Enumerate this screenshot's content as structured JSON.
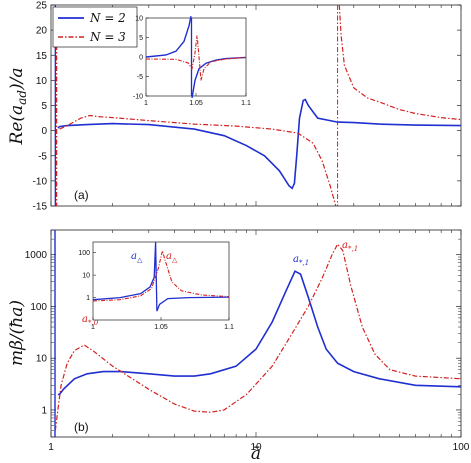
{
  "chart_data": [
    {
      "type": "line",
      "panel_label": "(a)",
      "ylabel": "Re(a_ad)/a",
      "xscale": "log",
      "xlim": [
        1,
        100
      ],
      "ylim": [
        -15,
        25
      ],
      "y_ticks": [
        -15,
        -10,
        -5,
        0,
        5,
        10,
        15,
        20,
        25
      ],
      "legend": {
        "placement": "top-left",
        "entries": [
          "N = 2",
          "N = 3"
        ]
      },
      "series": [
        {
          "name": "N = 2",
          "color": "#1f2fd0",
          "style": "solid",
          "points": [
            [
              1.08,
              0.5
            ],
            [
              1.1,
              0.8
            ],
            [
              1.2,
              1.0
            ],
            [
              1.5,
              1.2
            ],
            [
              2,
              1.4
            ],
            [
              3,
              1.2
            ],
            [
              5,
              0.3
            ],
            [
              7,
              -1.0
            ],
            [
              9,
              -3.0
            ],
            [
              11,
              -5.0
            ],
            [
              13,
              -8.0
            ],
            [
              14.5,
              -11.0
            ],
            [
              15,
              -11.5
            ],
            [
              15.4,
              -10.5
            ],
            [
              15.8,
              -5
            ],
            [
              16.3,
              2.5
            ],
            [
              17,
              6.0
            ],
            [
              17.4,
              6.2
            ],
            [
              18,
              5.0
            ],
            [
              20,
              2.5
            ],
            [
              25,
              1.7
            ],
            [
              30,
              1.6
            ],
            [
              40,
              1.3
            ],
            [
              60,
              1.1
            ],
            [
              100,
              1.0
            ]
          ]
        },
        {
          "name": "N = 3",
          "color": "#d42020",
          "style": "dashdot",
          "points": [
            [
              1.1,
              0.3
            ],
            [
              1.2,
              1.0
            ],
            [
              1.4,
              2.5
            ],
            [
              1.55,
              3.0
            ],
            [
              1.7,
              2.8
            ],
            [
              2,
              2.6
            ],
            [
              3,
              2.0
            ],
            [
              5,
              1.3
            ],
            [
              8,
              0.9
            ],
            [
              12,
              0.3
            ],
            [
              16,
              -0.5
            ],
            [
              19,
              -2.5
            ],
            [
              21,
              -6
            ],
            [
              23,
              -11
            ],
            [
              24.5,
              -15
            ],
            [
              25.5,
              25
            ],
            [
              26,
              19
            ],
            [
              27,
              13
            ],
            [
              30,
              8.5
            ],
            [
              35,
              6.5
            ],
            [
              40,
              5.7
            ],
            [
              50,
              4.2
            ],
            [
              60,
              3.4
            ],
            [
              80,
              2.6
            ],
            [
              100,
              2.2
            ]
          ]
        }
      ],
      "inset": {
        "xlim": [
          1,
          1.1
        ],
        "ylim": [
          -10,
          10
        ],
        "x_ticks": [
          "1",
          "1.05",
          "1.1"
        ],
        "y_ticks": [
          "-10",
          "-5",
          "0",
          "5",
          "10"
        ]
      }
    },
    {
      "type": "line",
      "panel_label": "(b)",
      "ylabel": "mβ/(ħa)",
      "xlabel": "ā",
      "xscale": "log",
      "yscale": "log",
      "xlim": [
        1,
        100
      ],
      "ylim": [
        0.3,
        3000
      ],
      "x_ticks": [
        "1",
        "10",
        "100"
      ],
      "y_ticks": [
        "1",
        "10",
        "100",
        "1000"
      ],
      "series": [
        {
          "name": "N = 2",
          "color": "#1f2fd0",
          "style": "solid",
          "points": [
            [
              1.08,
              2.0
            ],
            [
              1.1,
              2.0
            ],
            [
              1.15,
              2.5
            ],
            [
              1.3,
              4.0
            ],
            [
              1.5,
              5.0
            ],
            [
              1.8,
              5.5
            ],
            [
              2.2,
              5.5
            ],
            [
              3,
              5.0
            ],
            [
              4,
              4.5
            ],
            [
              5,
              4.5
            ],
            [
              6,
              5.0
            ],
            [
              8,
              7.0
            ],
            [
              10,
              15
            ],
            [
              12,
              50
            ],
            [
              14,
              200
            ],
            [
              15.5,
              480
            ],
            [
              16.5,
              420
            ],
            [
              18,
              150
            ],
            [
              20,
              40
            ],
            [
              22,
              15
            ],
            [
              25,
              8
            ],
            [
              30,
              5.5
            ],
            [
              40,
              4.0
            ],
            [
              60,
              3.0
            ],
            [
              100,
              2.8
            ]
          ]
        },
        {
          "name": "N = 3",
          "color": "#d42020",
          "style": "dashdot",
          "points": [
            [
              1.05,
              0.4
            ],
            [
              1.08,
              1.0
            ],
            [
              1.12,
              3.0
            ],
            [
              1.2,
              8.0
            ],
            [
              1.3,
              14
            ],
            [
              1.45,
              18
            ],
            [
              1.6,
              14
            ],
            [
              2,
              7.0
            ],
            [
              3,
              2.5
            ],
            [
              4,
              1.3
            ],
            [
              5,
              0.95
            ],
            [
              6,
              0.9
            ],
            [
              7,
              1.0
            ],
            [
              9,
              2.0
            ],
            [
              12,
              7
            ],
            [
              15,
              30
            ],
            [
              18,
              100
            ],
            [
              21,
              350
            ],
            [
              23.5,
              1000
            ],
            [
              25,
              1600
            ],
            [
              26.5,
              1200
            ],
            [
              29,
              250
            ],
            [
              33,
              40
            ],
            [
              38,
              12
            ],
            [
              45,
              6
            ],
            [
              60,
              4.5
            ],
            [
              100,
              4.0
            ]
          ]
        }
      ],
      "annotations": [
        {
          "text": "a*,1",
          "series": "N = 2"
        },
        {
          "text": "a*,1",
          "series": "N = 3"
        },
        {
          "text": "a*,0",
          "series": "N = 3"
        },
        {
          "text": "a△",
          "series": "N = 2"
        },
        {
          "text": "a△",
          "series": "N = 3"
        }
      ],
      "inset": {
        "xlim": [
          1,
          1.1
        ],
        "ylim": [
          0.1,
          300
        ],
        "x_ticks": [
          "1",
          "1.05",
          "1.1"
        ],
        "y_ticks": [
          "1",
          "10",
          "100"
        ]
      }
    }
  ]
}
